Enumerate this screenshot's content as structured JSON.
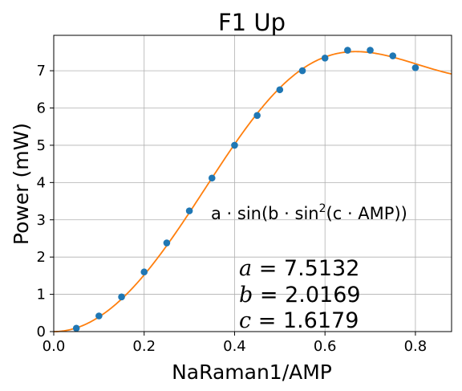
{
  "chart_data": {
    "type": "scatter",
    "title": "F1 Up",
    "xlabel": "NaRaman1/AMP",
    "ylabel": "Power (mW)",
    "xlim": [
      0.0,
      0.88
    ],
    "ylim": [
      0.0,
      7.95
    ],
    "grid": true,
    "x_ticks": [
      0.0,
      0.2,
      0.4,
      0.6,
      0.8
    ],
    "x_tick_labels": [
      "0.0",
      "0.2",
      "0.4",
      "0.6",
      "0.8"
    ],
    "y_ticks": [
      0,
      1,
      2,
      3,
      4,
      5,
      6,
      7
    ],
    "y_tick_labels": [
      "0",
      "1",
      "2",
      "3",
      "4",
      "5",
      "6",
      "7"
    ],
    "series": [
      {
        "kind": "scatter",
        "color": "#1f77b4",
        "x": [
          0.05,
          0.1,
          0.15,
          0.2,
          0.25,
          0.3,
          0.35,
          0.4,
          0.45,
          0.5,
          0.55,
          0.6,
          0.65,
          0.7,
          0.75,
          0.8
        ],
        "y": [
          0.09,
          0.42,
          0.93,
          1.6,
          2.38,
          3.24,
          4.12,
          5.0,
          5.8,
          6.49,
          7.0,
          7.34,
          7.55,
          7.55,
          7.4,
          7.08
        ]
      },
      {
        "kind": "fit-line",
        "color": "#ff7f0e",
        "model": "a*sin(b*sin^2(c*AMP))",
        "params": {
          "a": 7.5132,
          "b": 2.0169,
          "c": 1.6179
        }
      }
    ],
    "annotations": {
      "formula": {
        "pre": "a · sin(b · sin",
        "sup": "2",
        "post": "(c · AMP))"
      },
      "params": [
        {
          "name": "a",
          "value": "7.5132"
        },
        {
          "name": "b",
          "value": "2.0169"
        },
        {
          "name": "c",
          "value": "1.6179"
        }
      ]
    }
  }
}
